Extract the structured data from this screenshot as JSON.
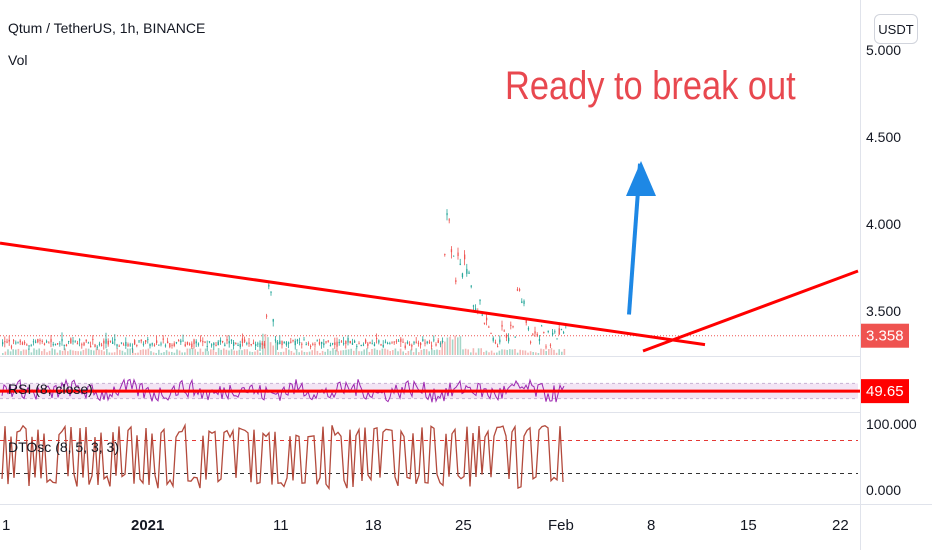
{
  "header": {
    "symbol_title": "Qtum / TetherUS, 1h, BINANCE",
    "volume_label": "Vol"
  },
  "currency_button": "USDT",
  "annotation": "Ready to break out",
  "colors": {
    "up": "#26a69a",
    "down": "#ef5350",
    "trendline": "#ff0000",
    "arrow": "#1e88e5",
    "rsi_line": "#9c27b0",
    "rsi_band": "#f3e5f5",
    "dt_line": "#b34a3c",
    "annotation": "#e8484f"
  },
  "chart_data": [
    {
      "type": "candlestick",
      "pane": "price",
      "x_ticks": [
        "1",
        "2021",
        "11",
        "18",
        "25",
        "Feb",
        "8",
        "15",
        "22"
      ],
      "y_ticks": [
        "5.000",
        "4.500",
        "4.000",
        "3.500"
      ],
      "ylim": [
        3.25,
        5.0
      ],
      "last_price": "3.358",
      "description_values": {
        "baseline_range": [
          3.28,
          3.35
        ],
        "spike_1_high": 3.72,
        "spike_2_high": 4.18,
        "late_high": 3.65
      },
      "trendlines": [
        {
          "name": "descending resistance",
          "from": {
            "x": "start",
            "y": 3.89
          },
          "to": {
            "x": "Feb 10",
            "y": 3.33
          }
        },
        {
          "name": "ascending line",
          "from": {
            "x": "Feb 6",
            "y": 3.27
          },
          "to": {
            "x": "Feb 23",
            "y": 3.73
          }
        }
      ],
      "arrow": {
        "direction": "up",
        "from_y": 3.48,
        "to_y": 4.35
      }
    },
    {
      "type": "line",
      "pane": "rsi",
      "label": "RSI (8, close)",
      "last_value": "49.65",
      "band": [
        30,
        70
      ]
    },
    {
      "type": "line",
      "pane": "dtosc",
      "label": "DTOsc (8, 5, 3, 3)",
      "y_ticks": [
        "100.000",
        "0.000"
      ],
      "ylim": [
        0,
        100
      ],
      "levels": [
        75,
        25
      ]
    }
  ]
}
